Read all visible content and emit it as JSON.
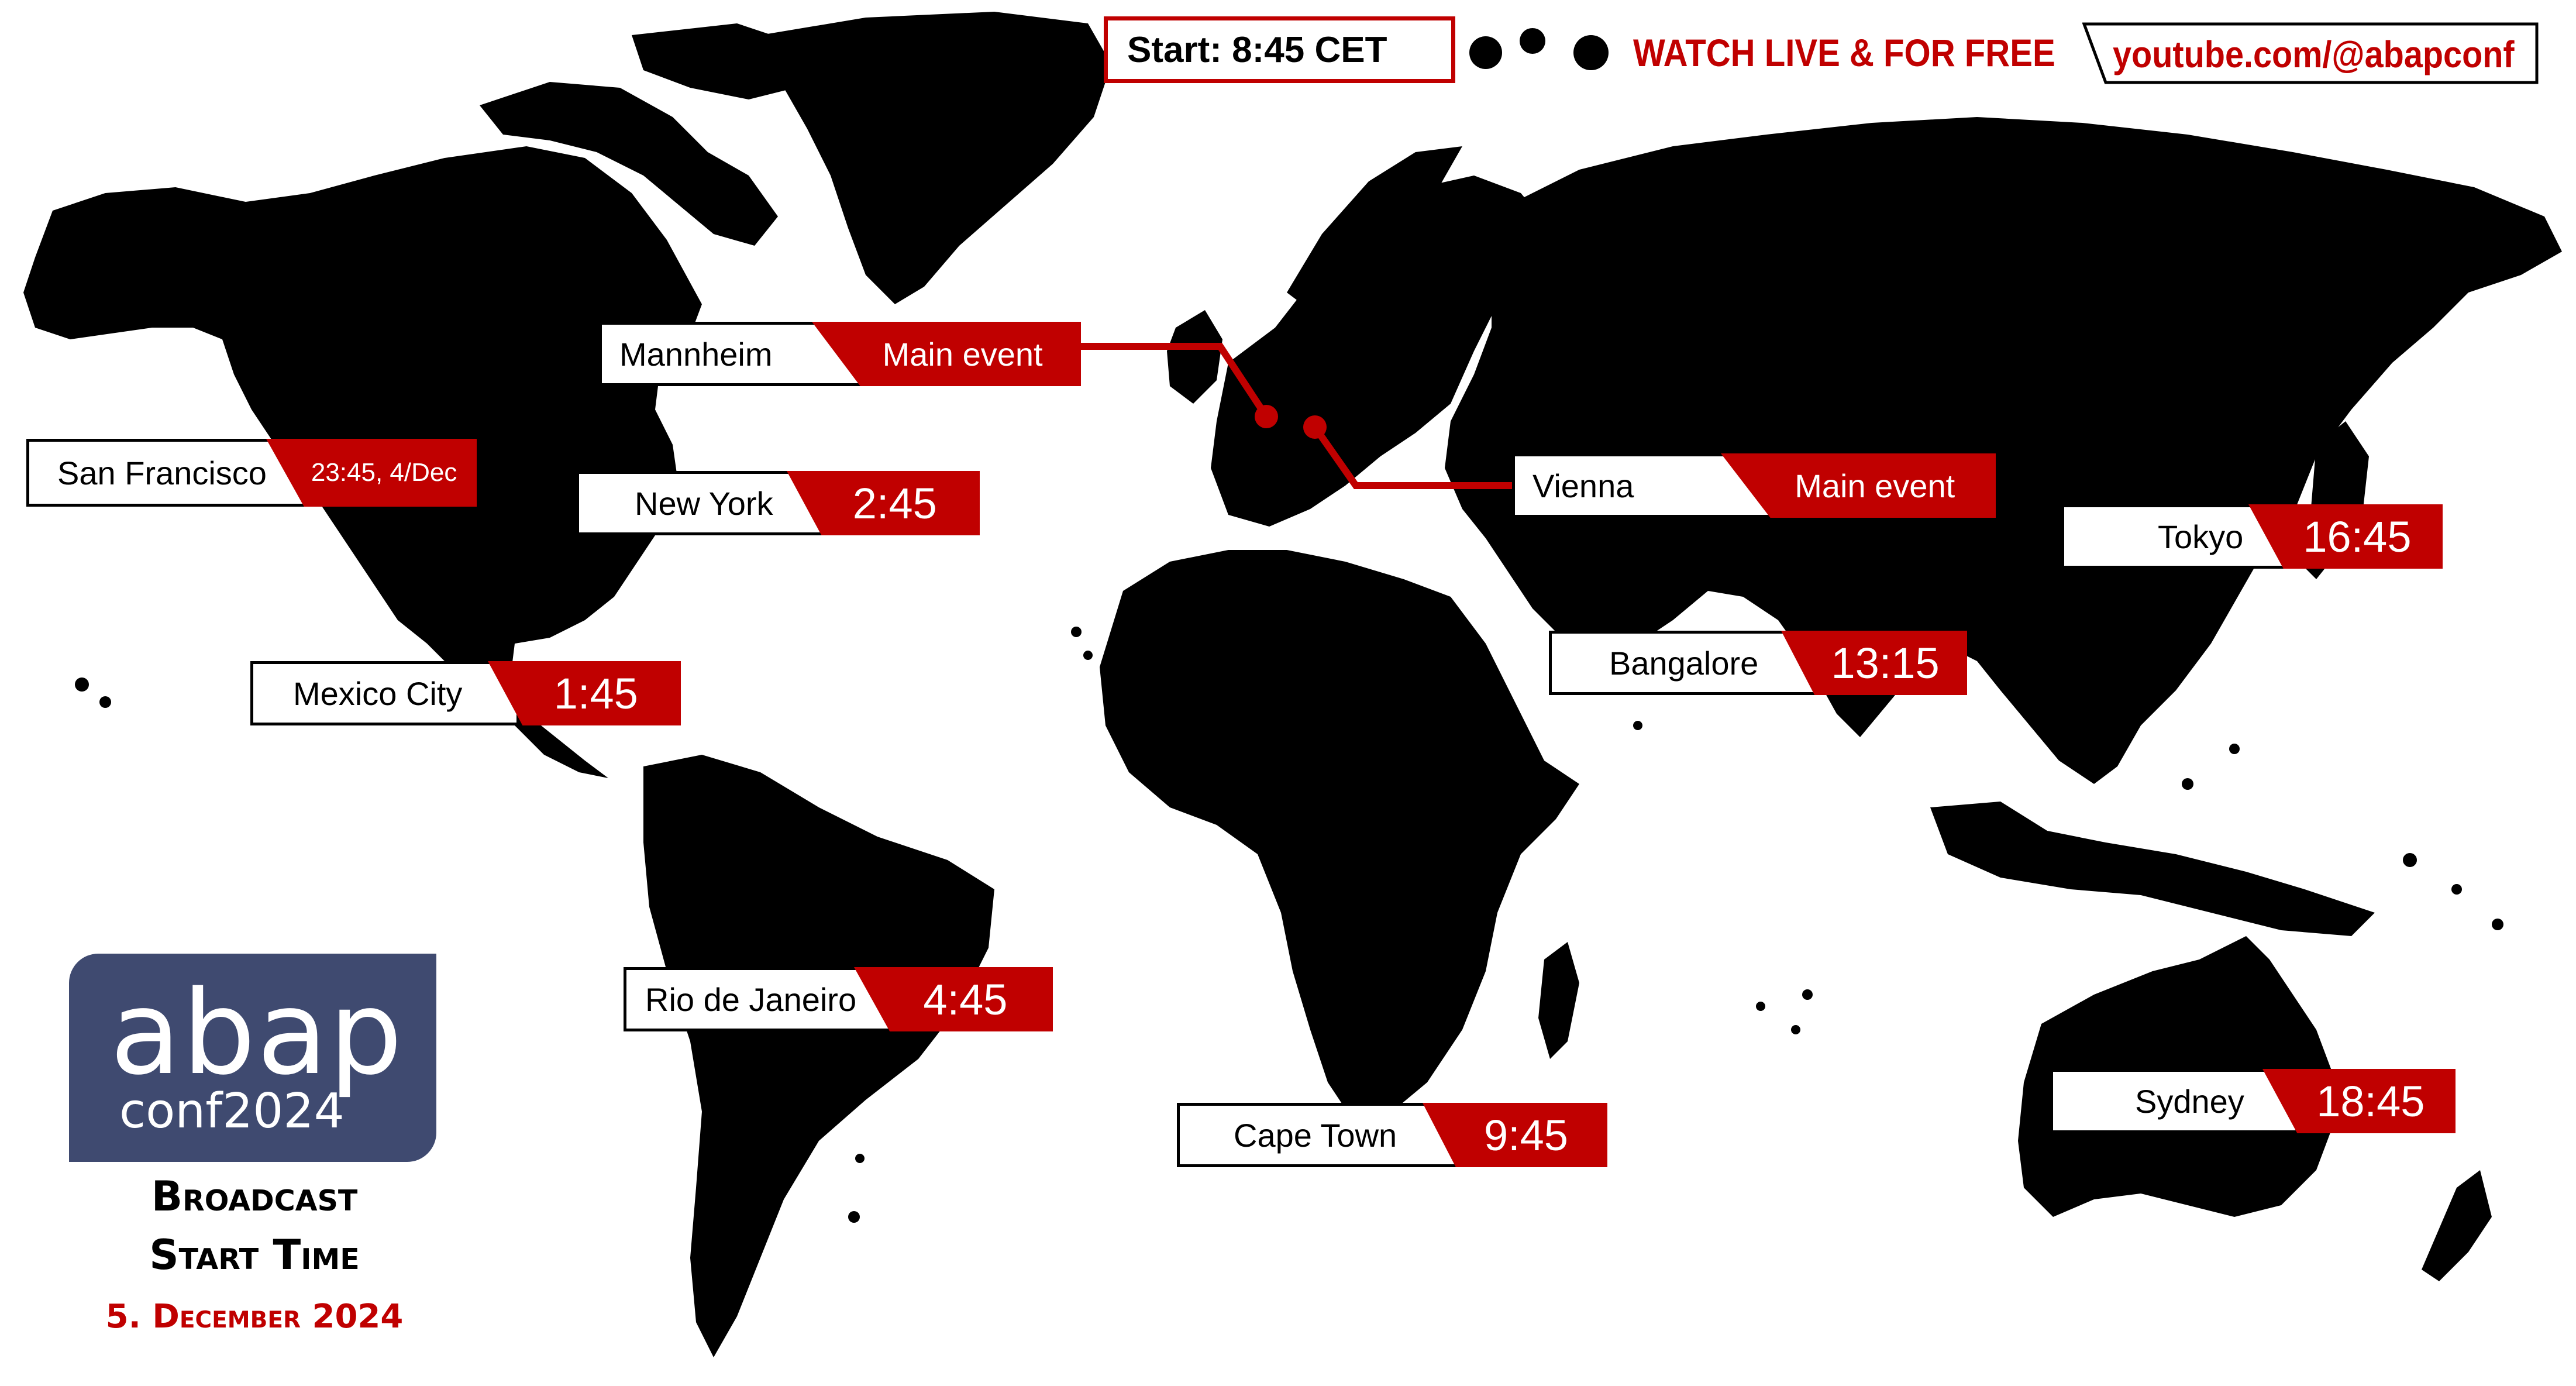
{
  "colors": {
    "accent": "#c00000",
    "land": "#000000",
    "logo_bg": "#3f4a70"
  },
  "header": {
    "start": "Start: 8:45 CET",
    "watch": "WATCH LIVE & FOR FREE",
    "url": "youtube.com/@abapconf"
  },
  "cities": {
    "mannheim": {
      "name": "Mannheim",
      "time": "Main event"
    },
    "vienna": {
      "name": "Vienna",
      "time": "Main event"
    },
    "san_francisco": {
      "name": "San Francisco",
      "time": "23:45, 4/Dec"
    },
    "new_york": {
      "name": "New York",
      "time": "2:45"
    },
    "mexico_city": {
      "name": "Mexico City",
      "time": "1:45"
    },
    "rio": {
      "name": "Rio de Janeiro",
      "time": "4:45"
    },
    "cape_town": {
      "name": "Cape Town",
      "time": "9:45"
    },
    "bangalore": {
      "name": "Bangalore",
      "time": "13:15"
    },
    "tokyo": {
      "name": "Tokyo",
      "time": "16:45"
    },
    "sydney": {
      "name": "Sydney",
      "time": "18:45"
    }
  },
  "logo": {
    "line1": "abap",
    "line2": "conf2024"
  },
  "caption": {
    "line1": "Broadcast",
    "line2": "Start Time",
    "date": "5. December 2024"
  }
}
